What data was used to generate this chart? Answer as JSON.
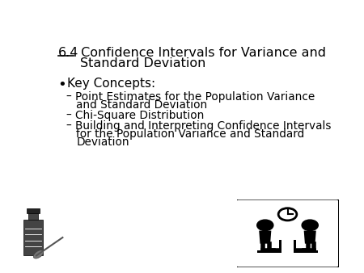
{
  "background_color": "#ffffff",
  "text_color": "#000000",
  "title_num": "6.4",
  "title_text": " Confidence Intervals for Variance and",
  "title_line2": "Standard Deviation",
  "bullet_main": "Key Concepts:",
  "sub_bullets": [
    "Point Estimates for the Population Variance\nand Standard Deviation",
    "Chi-Square Distribution",
    "Building and Interpreting Confidence Intervals\nfor the Population Variance and Standard\nDeviation"
  ],
  "title_fontsize": 11.5,
  "bullet_fontsize": 11.0,
  "sub_bullet_fontsize": 9.8
}
